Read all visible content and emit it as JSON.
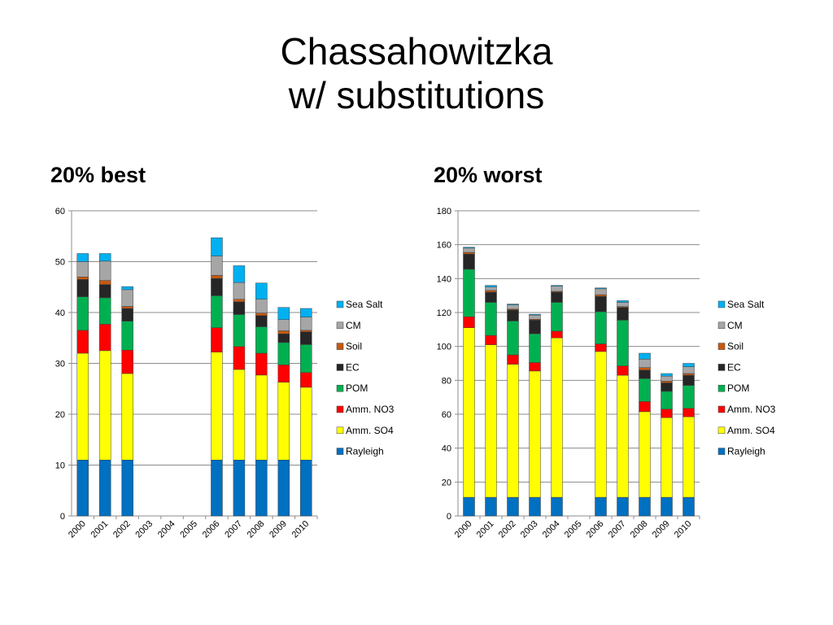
{
  "slide": {
    "title_line1": "Chassahowitzka",
    "title_line2": "w/ substitutions",
    "left_heading": "20% best",
    "right_heading": "20% worst"
  },
  "colors": {
    "Rayleigh": "#0070C0",
    "Amm. SO4": "#FFFF00",
    "Amm. NO3": "#FF0000",
    "POM": "#00B050",
    "EC": "#262626",
    "Soil": "#C55A11",
    "CM": "#A6A6A6",
    "Sea Salt": "#00B0F0"
  },
  "chart_data": [
    {
      "type": "bar",
      "stacked": true,
      "title": "20% best",
      "categories": [
        "2000",
        "2001",
        "2002",
        "2003",
        "2004",
        "2005",
        "2006",
        "2007",
        "2008",
        "2009",
        "2010"
      ],
      "ylim": [
        0,
        60
      ],
      "yticks": [
        0,
        10,
        20,
        30,
        40,
        50,
        60
      ],
      "grid": true,
      "legend_position": "right",
      "series": [
        {
          "name": "Rayleigh",
          "values": [
            11,
            11,
            11,
            null,
            null,
            null,
            11,
            11,
            11,
            11,
            11
          ]
        },
        {
          "name": "Amm. SO4",
          "values": [
            21,
            21.5,
            17,
            null,
            null,
            null,
            21.2,
            17.8,
            16.7,
            15.3,
            14.3
          ]
        },
        {
          "name": "Amm. NO3",
          "values": [
            4.5,
            5.2,
            4.6,
            null,
            null,
            null,
            4.8,
            4.5,
            4.3,
            3.4,
            2.9
          ]
        },
        {
          "name": "POM",
          "values": [
            6.6,
            5.2,
            5.7,
            null,
            null,
            null,
            6.3,
            6.3,
            5.2,
            4.4,
            5.5
          ]
        },
        {
          "name": "EC",
          "values": [
            3.4,
            2.6,
            2.5,
            null,
            null,
            null,
            3.4,
            2.5,
            2.2,
            1.7,
            2.5
          ]
        },
        {
          "name": "Soil",
          "values": [
            0.5,
            0.8,
            0.4,
            null,
            null,
            null,
            0.6,
            0.5,
            0.5,
            0.6,
            0.3
          ]
        },
        {
          "name": "CM",
          "values": [
            3.0,
            3.8,
            3.3,
            null,
            null,
            null,
            3.8,
            3.3,
            2.7,
            2.2,
            2.6
          ]
        },
        {
          "name": "Sea Salt",
          "values": [
            1.6,
            1.5,
            0.6,
            null,
            null,
            null,
            3.6,
            3.3,
            3.2,
            2.4,
            1.7
          ]
        }
      ]
    },
    {
      "type": "bar",
      "stacked": true,
      "title": "20% worst",
      "categories": [
        "2000",
        "2001",
        "2002",
        "2003",
        "2004",
        "2005",
        "2006",
        "2007",
        "2008",
        "2009",
        "2010"
      ],
      "ylim": [
        0,
        180
      ],
      "yticks": [
        0,
        20,
        40,
        60,
        80,
        100,
        120,
        140,
        160,
        180
      ],
      "grid": true,
      "legend_position": "right",
      "series": [
        {
          "name": "Rayleigh",
          "values": [
            11,
            11,
            11,
            11,
            11,
            null,
            11,
            11,
            11,
            11,
            11
          ]
        },
        {
          "name": "Amm. SO4",
          "values": [
            100,
            90,
            78.5,
            74.5,
            94,
            null,
            86,
            72,
            50.5,
            47,
            47.5
          ]
        },
        {
          "name": "Amm. NO3",
          "values": [
            6.5,
            5.5,
            5.5,
            5,
            4,
            null,
            4.5,
            5.5,
            6,
            5,
            5
          ]
        },
        {
          "name": "POM",
          "values": [
            28,
            19.5,
            20,
            17,
            17,
            null,
            19,
            27,
            13.5,
            10.5,
            13.5
          ]
        },
        {
          "name": "EC",
          "values": [
            9,
            6,
            6.5,
            8,
            6,
            null,
            9,
            7.5,
            5,
            5,
            6
          ]
        },
        {
          "name": "Soil",
          "values": [
            1,
            1,
            0.5,
            0.5,
            0.5,
            null,
            1,
            0.5,
            1.5,
            1,
            1
          ]
        },
        {
          "name": "CM",
          "values": [
            2.5,
            2,
            2.5,
            2.5,
            3,
            null,
            3.5,
            2.5,
            5,
            3,
            4
          ]
        },
        {
          "name": "Sea Salt",
          "values": [
            0.5,
            1,
            0.5,
            0.5,
            0.5,
            null,
            0.5,
            1,
            3.5,
            1.5,
            2
          ]
        }
      ]
    }
  ]
}
